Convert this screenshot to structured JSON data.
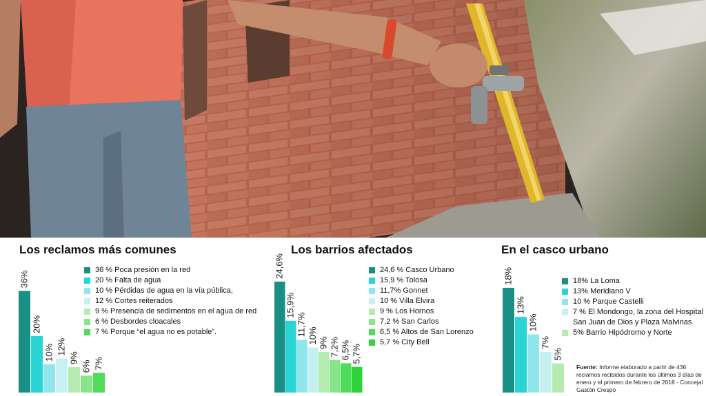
{
  "photo": {
    "description_icon": "faucet-photo"
  },
  "colors": [
    "#1a8f86",
    "#2ad4d4",
    "#8fe6ec",
    "#c6f1f2",
    "#b5eab0",
    "#88e68a",
    "#4fdc58",
    "#2fd33a"
  ],
  "chart_data": [
    {
      "type": "bar",
      "title": "Los reclamos más comunes",
      "values": [
        36,
        20,
        10,
        12,
        9,
        6,
        7
      ],
      "value_labels": [
        "36%",
        "20%",
        "10%",
        "12%",
        "9%",
        "6%",
        "7%"
      ],
      "legend": [
        "36 % Poca presión en la red",
        "20 % Falta de agua",
        "10 % Pérdidas de agua en la vía pública,",
        "12 % Cortes reiterados",
        "9 % Presencia de sedimentos en el agua de red",
        "6 % Desbordes cloacales",
        "7 % Porque “el agua no es potable”."
      ],
      "colors": [
        "#1a8f86",
        "#2ad4d4",
        "#8fe6ec",
        "#c6f1f2",
        "#b5eab0",
        "#88e68a",
        "#4fdc58"
      ]
    },
    {
      "type": "bar",
      "title": "Los barrios afectados",
      "values": [
        24.6,
        15.9,
        11.7,
        10,
        9,
        7.2,
        6.5,
        5.7
      ],
      "value_labels": [
        "24,6%",
        "15,9%",
        "11,7%",
        "10%",
        "9%",
        "7,2%",
        "6,5%",
        "5,7%"
      ],
      "legend": [
        "24,6 % Casco Urbano",
        "15,9 % Tolosa",
        "11,7% Gonnet",
        "10 % Villa Elvira",
        "9 % Los Hornos",
        "7,2 % San Carlos",
        "6,5 % Altos de San Lorenzo",
        "5,7 % City Bell"
      ],
      "colors": [
        "#1a8f86",
        "#2ad4d4",
        "#8fe6ec",
        "#c6f1f2",
        "#b5eab0",
        "#88e68a",
        "#4fdc58",
        "#2fd33a"
      ]
    },
    {
      "type": "bar",
      "title": "En el casco urbano",
      "values": [
        18,
        13,
        10,
        7,
        5
      ],
      "value_labels": [
        "18%",
        "13%",
        "10%",
        "7%",
        "5%"
      ],
      "legend": [
        "18% La Loma",
        "13% Meridiano V",
        "10 % Parque Castelli",
        "7 % El Mondongo, la zona del Hospital San Juan de Dios y Plaza Malvinas",
        "5% Barrio Hipódromo y Norte"
      ],
      "colors": [
        "#1a8f86",
        "#2ad4d4",
        "#8fe6ec",
        "#c6f1f2",
        "#b5eab0"
      ]
    }
  ],
  "source": {
    "label": "Fuente:",
    "text": " Informe elaborado a partir de 436 reclamos recibidos durante los últimos 3 días de enero y el primero de febrero de 2018 - Concejal Gastón Crespo"
  }
}
